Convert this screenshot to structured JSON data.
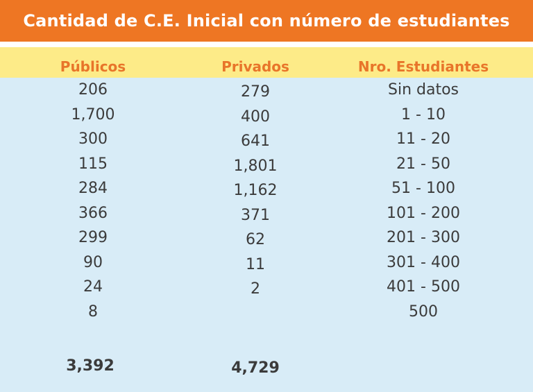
{
  "title": "Cantidad de C.E. Inicial con número de estudiantes",
  "headers": [
    "Públicos",
    "Privados",
    "Nro. Estudiantes"
  ],
  "rows": [
    [
      "206",
      "279",
      "Sin datos"
    ],
    [
      "1,700",
      "400",
      "1 - 10"
    ],
    [
      "300",
      "641",
      "11 - 20"
    ],
    [
      "115",
      "1,801",
      "21 - 50"
    ],
    [
      "284",
      "1,162",
      "51 - 100"
    ],
    [
      "366",
      "371",
      "101 - 200"
    ],
    [
      "299",
      "62",
      "201 - 300"
    ],
    [
      "90",
      "11",
      "301 - 400"
    ],
    [
      "24",
      "2",
      "401 - 500"
    ],
    [
      "8",
      "",
      "500"
    ]
  ],
  "totals": [
    "3,392",
    "4,729"
  ],
  "colors": {
    "title_bg": "#ee7623",
    "header_band": "#fdeb88",
    "header_text": "#e8752a",
    "body_bg": "#d8ecf7",
    "text": "#3b3b3b"
  }
}
